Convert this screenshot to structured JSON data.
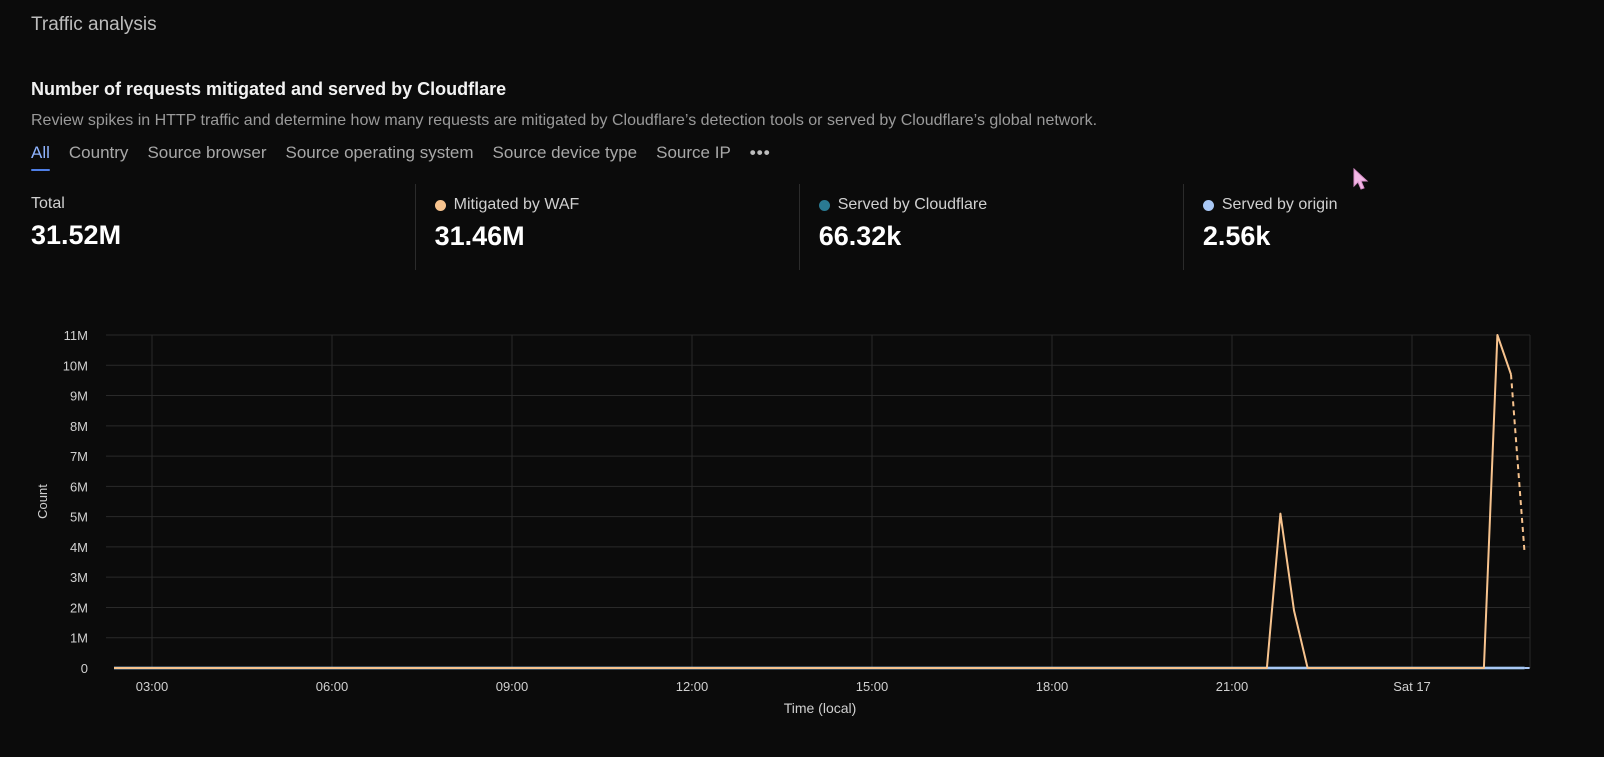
{
  "header": {
    "section_title": "Traffic analysis",
    "card_title": "Number of requests mitigated and served by Cloudflare",
    "card_description": "Review spikes in HTTP traffic and determine how many requests are mitigated by Cloudflare’s detection tools or served by Cloudflare’s global network."
  },
  "tabs": [
    {
      "label": "All",
      "active": true
    },
    {
      "label": "Country"
    },
    {
      "label": "Source browser"
    },
    {
      "label": "Source operating system"
    },
    {
      "label": "Source device type"
    },
    {
      "label": "Source IP"
    },
    {
      "label": "•••"
    }
  ],
  "stats": [
    {
      "label": "Total",
      "value": "31.52M"
    },
    {
      "label": "Mitigated by WAF",
      "value": "31.46M",
      "color": "#f7c38e"
    },
    {
      "label": "Served by Cloudflare",
      "value": "66.32k",
      "color": "#2a7a92"
    },
    {
      "label": "Served by origin",
      "value": "2.56k",
      "color": "#a9c8f5"
    }
  ],
  "chart_data": {
    "type": "line",
    "xlabel": "Time (local)",
    "ylabel": "Count",
    "x_range_hours": [
      -0.7,
      23.1
    ],
    "x_ticks": [
      {
        "hour": 3,
        "label": "03:00"
      },
      {
        "hour": 6,
        "label": "06:00"
      },
      {
        "hour": 9,
        "label": "09:00"
      },
      {
        "hour": 12,
        "label": "12:00"
      },
      {
        "hour": 15,
        "label": "15:00"
      },
      {
        "hour": 18,
        "label": "18:00"
      },
      {
        "hour": 21,
        "label": "21:00"
      },
      {
        "hour": 24,
        "label": "Sat 17"
      }
    ],
    "ylim": [
      0,
      11000000
    ],
    "y_ticks": [
      {
        "value": 0,
        "label": "0"
      },
      {
        "value": 1000000,
        "label": "1M"
      },
      {
        "value": 2000000,
        "label": "2M"
      },
      {
        "value": 3000000,
        "label": "3M"
      },
      {
        "value": 4000000,
        "label": "4M"
      },
      {
        "value": 5000000,
        "label": "5M"
      },
      {
        "value": 6000000,
        "label": "6M"
      },
      {
        "value": 7000000,
        "label": "7M"
      },
      {
        "value": 8000000,
        "label": "8M"
      },
      {
        "value": 9000000,
        "label": "9M"
      },
      {
        "value": 10000000,
        "label": "10M"
      },
      {
        "value": 11000000,
        "label": "11M"
      }
    ],
    "grid": true,
    "series": [
      {
        "name": "Mitigated by WAF",
        "color": "#f7c38e",
        "points": [
          [
            0,
            0
          ],
          [
            21.25,
            0
          ],
          [
            21.5,
            5100000
          ],
          [
            21.75,
            1900000
          ],
          [
            22.0,
            0
          ],
          [
            25.25,
            0
          ],
          [
            25.5,
            11000000
          ],
          [
            25.75,
            9700000
          ]
        ],
        "projected": [
          [
            25.75,
            9700000
          ],
          [
            26.0,
            3800000
          ]
        ]
      },
      {
        "name": "Served by Cloudflare",
        "color": "#2a7a92",
        "points": [
          [
            0,
            0
          ],
          [
            26.0,
            0
          ]
        ]
      },
      {
        "name": "Served by origin",
        "color": "#a9c8f5",
        "points": [
          [
            0,
            0
          ],
          [
            26.0,
            0
          ]
        ],
        "projected": [
          [
            26.0,
            0
          ],
          [
            26.1,
            0
          ]
        ]
      }
    ]
  }
}
